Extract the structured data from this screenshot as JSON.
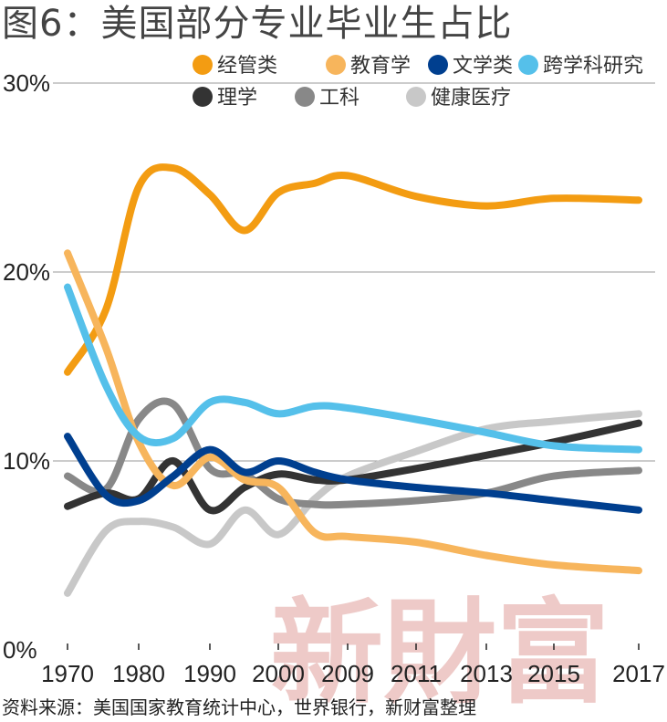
{
  "title": "图6：美国部分专业毕业生占比",
  "source": "资料来源：美国国家教育统计中心，世界银行，新财富整理",
  "watermark": "新財富",
  "chart_data": {
    "type": "line",
    "x": [
      1970,
      1975,
      1980,
      1985,
      1990,
      1995,
      2000,
      2005,
      2009,
      2011,
      2013,
      2015,
      2017
    ],
    "x_tick_labels": [
      "1970",
      "1980",
      "1990",
      "2000",
      "2009",
      "2011",
      "2013",
      "2015",
      "2017"
    ],
    "y_tick_labels": [
      "0%",
      "10%",
      "20%",
      "30%"
    ],
    "ylim": [
      0,
      30
    ],
    "grid": "horizontal",
    "legend_position": "top-right",
    "series": [
      {
        "name": "经管类",
        "color": "#f39c12",
        "values": [
          14.7,
          18.0,
          24.5,
          25.5,
          24.1,
          22.2,
          24.2,
          24.7,
          25.1,
          24.0,
          23.5,
          23.9,
          23.8
        ]
      },
      {
        "name": "教育学",
        "color": "#f7b55c",
        "values": [
          21.0,
          16.0,
          11.0,
          8.7,
          10.2,
          9.0,
          8.6,
          6.2,
          6.0,
          5.7,
          5.0,
          4.5,
          4.2
        ]
      },
      {
        "name": "文学类",
        "color": "#003f8f",
        "values": [
          11.3,
          8.2,
          7.9,
          9.2,
          10.6,
          9.4,
          10.0,
          9.4,
          9.0,
          8.6,
          8.3,
          7.9,
          7.4
        ]
      },
      {
        "name": "跨学科研究",
        "color": "#55c0ea",
        "values": [
          19.2,
          14.0,
          11.3,
          11.2,
          13.1,
          13.1,
          12.5,
          12.9,
          12.8,
          12.2,
          11.5,
          10.8,
          10.6
        ]
      },
      {
        "name": "理学",
        "color": "#333333",
        "values": [
          7.6,
          8.3,
          8.0,
          10.0,
          7.4,
          8.6,
          9.3,
          9.0,
          9.0,
          9.6,
          10.3,
          11.0,
          12.0
        ]
      },
      {
        "name": "工科",
        "color": "#888888",
        "values": [
          9.2,
          8.5,
          12.2,
          13.0,
          9.6,
          9.3,
          8.0,
          7.7,
          7.7,
          7.9,
          8.3,
          9.2,
          9.5
        ]
      },
      {
        "name": "健康医疗",
        "color": "#c8c8c8",
        "values": [
          3.0,
          6.3,
          6.8,
          6.5,
          5.6,
          7.4,
          6.1,
          8.0,
          9.2,
          10.5,
          11.7,
          12.1,
          12.5
        ]
      }
    ]
  }
}
